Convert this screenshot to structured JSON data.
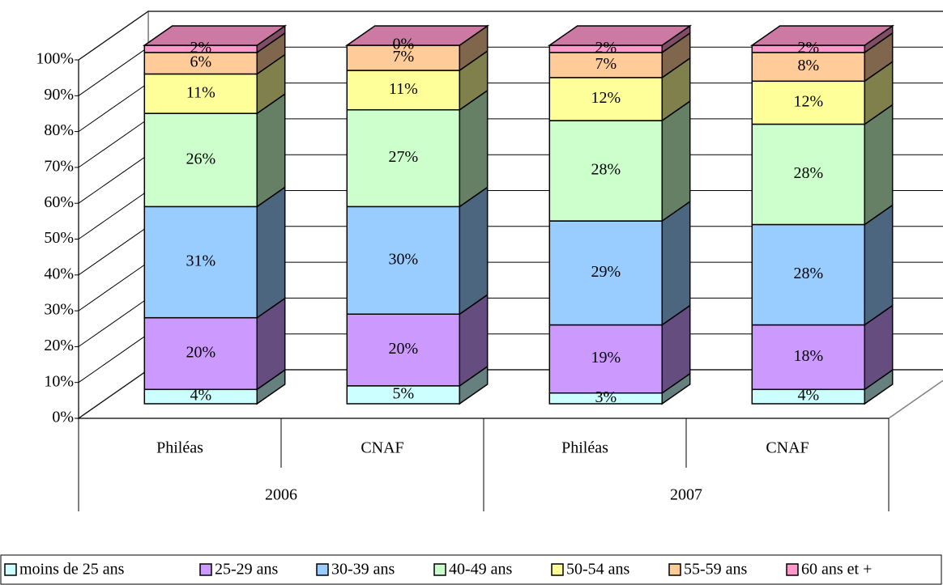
{
  "chart_data": {
    "type": "bar3d_stacked",
    "categories": [
      "Philéas",
      "CNAF",
      "Philéas",
      "CNAF"
    ],
    "groups": [
      "2006",
      "2007"
    ],
    "ylim": [
      0,
      100
    ],
    "yticks": [
      {
        "value": 0,
        "label": "0%"
      },
      {
        "value": 10,
        "label": "10%"
      },
      {
        "value": 20,
        "label": "20%"
      },
      {
        "value": 30,
        "label": "30%"
      },
      {
        "value": 40,
        "label": "40%"
      },
      {
        "value": 50,
        "label": "50%"
      },
      {
        "value": 60,
        "label": "60%"
      },
      {
        "value": 70,
        "label": "70%"
      },
      {
        "value": 80,
        "label": "80%"
      },
      {
        "value": 90,
        "label": "90%"
      },
      {
        "value": 100,
        "label": "100%"
      }
    ],
    "grid": true,
    "legend": "bottom",
    "series": [
      {
        "name": "moins de 25 ans",
        "color": "#ccffff",
        "values": [
          4,
          5,
          3,
          4
        ],
        "value_labels": [
          "4%",
          "5%",
          "3%",
          "4%"
        ]
      },
      {
        "name": "25-29 ans",
        "color": "#cc99ff",
        "values": [
          20,
          20,
          19,
          18
        ],
        "value_labels": [
          "20%",
          "20%",
          "19%",
          "18%"
        ]
      },
      {
        "name": "30-39 ans",
        "color": "#99ccff",
        "values": [
          31,
          30,
          29,
          28
        ],
        "value_labels": [
          "31%",
          "30%",
          "29%",
          "28%"
        ]
      },
      {
        "name": "40-49 ans",
        "color": "#ccffcc",
        "values": [
          26,
          27,
          28,
          28
        ],
        "value_labels": [
          "26%",
          "27%",
          "28%",
          "28%"
        ]
      },
      {
        "name": "50-54 ans",
        "color": "#ffff99",
        "values": [
          11,
          11,
          12,
          12
        ],
        "value_labels": [
          "11%",
          "11%",
          "12%",
          "12%"
        ]
      },
      {
        "name": "55-59 ans",
        "color": "#ffcc99",
        "values": [
          6,
          7,
          7,
          8
        ],
        "value_labels": [
          "6%",
          "7%",
          "7%",
          "8%"
        ]
      },
      {
        "name": "60 ans et +",
        "color": "#ff99cc",
        "values": [
          2,
          0,
          2,
          2
        ],
        "value_labels": [
          "2%",
          "0%",
          "2%",
          "2%"
        ]
      }
    ]
  }
}
